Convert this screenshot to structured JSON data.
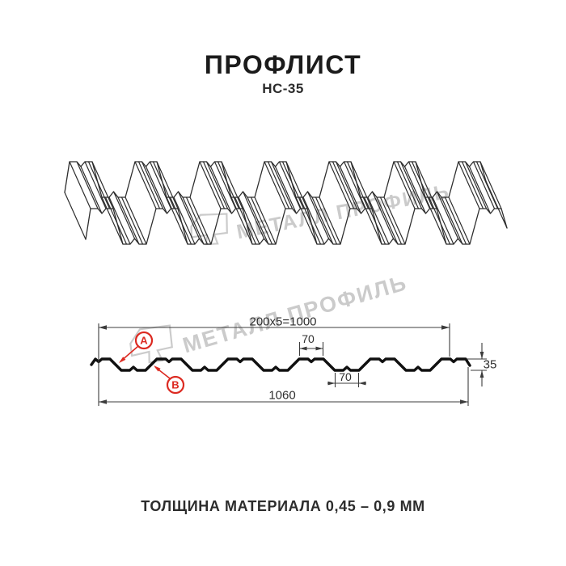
{
  "page": {
    "title": "ПРОФЛИСТ",
    "subtitle": "НС-35",
    "footer": "ТОЛЩИНА МАТЕРИАЛА 0,45 – 0,9 ММ"
  },
  "watermark": {
    "text": "МЕТАЛЛ ПРОФИЛЬ"
  },
  "diagram": {
    "dim_top_width": "200x5=1000",
    "dim_crest_top": "70",
    "dim_valley_bottom": "70",
    "dim_height": "35",
    "dim_total_width": "1060",
    "label_a": "А",
    "label_b": "В"
  },
  "colors": {
    "accent_red": "#dc2a21",
    "line_3d": "#2d2d2d",
    "profile": "#101010",
    "dim": "#3c3c3c",
    "watermark": "#cbcbcb"
  }
}
